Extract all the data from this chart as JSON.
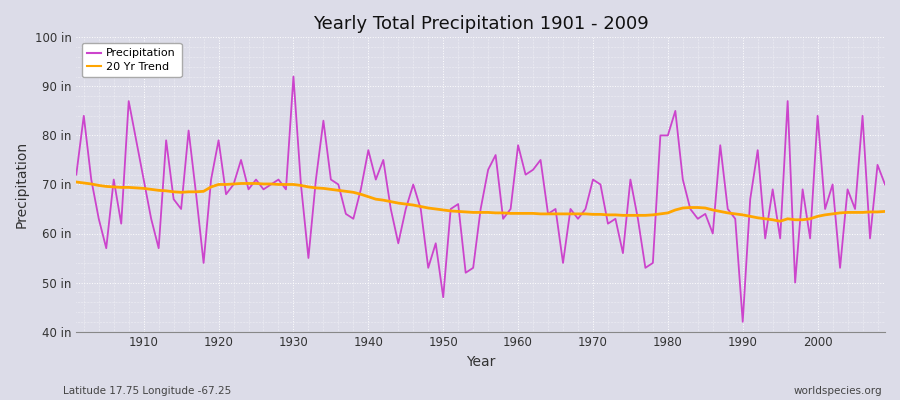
{
  "title": "Yearly Total Precipitation 1901 - 2009",
  "xlabel": "Year",
  "ylabel": "Precipitation",
  "subtitle_left": "Latitude 17.75 Longitude -67.25",
  "subtitle_right": "worldspecies.org",
  "ylim": [
    40,
    100
  ],
  "xlim": [
    1901,
    2009
  ],
  "yticks": [
    40,
    50,
    60,
    70,
    80,
    90,
    100
  ],
  "ytick_labels": [
    "40 in",
    "50 in",
    "60 in",
    "70 in",
    "80 in",
    "90 in",
    "100 in"
  ],
  "xticks": [
    1910,
    1920,
    1930,
    1940,
    1950,
    1960,
    1970,
    1980,
    1990,
    2000
  ],
  "precip_color": "#CC44CC",
  "trend_color": "#FFA500",
  "bg_color": "#DCDCE8",
  "plot_bg_color": "#DCDCE8",
  "grid_color": "#FFFFFF",
  "years": [
    1901,
    1902,
    1903,
    1904,
    1905,
    1906,
    1907,
    1908,
    1909,
    1910,
    1911,
    1912,
    1913,
    1914,
    1915,
    1916,
    1917,
    1918,
    1919,
    1920,
    1921,
    1922,
    1923,
    1924,
    1925,
    1926,
    1927,
    1928,
    1929,
    1930,
    1931,
    1932,
    1933,
    1934,
    1935,
    1936,
    1937,
    1938,
    1939,
    1940,
    1941,
    1942,
    1943,
    1944,
    1945,
    1946,
    1947,
    1948,
    1949,
    1950,
    1951,
    1952,
    1953,
    1954,
    1955,
    1956,
    1957,
    1958,
    1959,
    1960,
    1961,
    1962,
    1963,
    1964,
    1965,
    1966,
    1967,
    1968,
    1969,
    1970,
    1971,
    1972,
    1973,
    1974,
    1975,
    1976,
    1977,
    1978,
    1979,
    1980,
    1981,
    1982,
    1983,
    1984,
    1985,
    1986,
    1987,
    1988,
    1989,
    1990,
    1991,
    1992,
    1993,
    1994,
    1995,
    1996,
    1997,
    1998,
    1999,
    2000,
    2001,
    2002,
    2003,
    2004,
    2005,
    2006,
    2007,
    2008,
    2009
  ],
  "precip": [
    72,
    84,
    71,
    63,
    57,
    71,
    62,
    87,
    79,
    71,
    63,
    57,
    79,
    67,
    65,
    81,
    68,
    54,
    71,
    79,
    68,
    70,
    75,
    69,
    71,
    69,
    70,
    71,
    69,
    92,
    70,
    55,
    71,
    83,
    71,
    70,
    64,
    63,
    69,
    77,
    71,
    75,
    65,
    58,
    65,
    70,
    65,
    53,
    58,
    47,
    65,
    66,
    52,
    53,
    65,
    73,
    76,
    63,
    65,
    78,
    72,
    73,
    75,
    64,
    65,
    54,
    65,
    63,
    65,
    71,
    70,
    62,
    63,
    56,
    71,
    63,
    53,
    54,
    80,
    80,
    85,
    71,
    65,
    63,
    64,
    60,
    78,
    65,
    63,
    42,
    67,
    77,
    59,
    69,
    59,
    87,
    50,
    69,
    59,
    84,
    65,
    70,
    53,
    69,
    65,
    84,
    59,
    74,
    70
  ],
  "trend": [
    70.5,
    70.3,
    70.1,
    69.8,
    69.6,
    69.5,
    69.4,
    69.4,
    69.3,
    69.2,
    69.0,
    68.8,
    68.7,
    68.5,
    68.4,
    68.5,
    68.5,
    68.6,
    69.5,
    70.0,
    70.0,
    70.1,
    70.2,
    70.2,
    70.2,
    70.1,
    70.1,
    70.0,
    70.0,
    70.0,
    69.8,
    69.5,
    69.3,
    69.2,
    69.0,
    68.8,
    68.6,
    68.4,
    68.0,
    67.5,
    67.0,
    66.8,
    66.5,
    66.2,
    66.0,
    65.8,
    65.5,
    65.2,
    65.0,
    64.8,
    64.6,
    64.5,
    64.4,
    64.3,
    64.3,
    64.3,
    64.2,
    64.2,
    64.1,
    64.1,
    64.1,
    64.1,
    64.0,
    64.0,
    64.0,
    64.0,
    64.0,
    64.0,
    64.0,
    63.9,
    63.9,
    63.8,
    63.8,
    63.7,
    63.7,
    63.7,
    63.7,
    63.8,
    64.0,
    64.2,
    64.8,
    65.2,
    65.3,
    65.3,
    65.2,
    64.8,
    64.5,
    64.2,
    64.0,
    63.8,
    63.5,
    63.2,
    63.0,
    62.8,
    62.5,
    63.0,
    62.8,
    62.8,
    63.0,
    63.5,
    63.8,
    64.0,
    64.2,
    64.3,
    64.3,
    64.3,
    64.4,
    64.4,
    64.5
  ]
}
